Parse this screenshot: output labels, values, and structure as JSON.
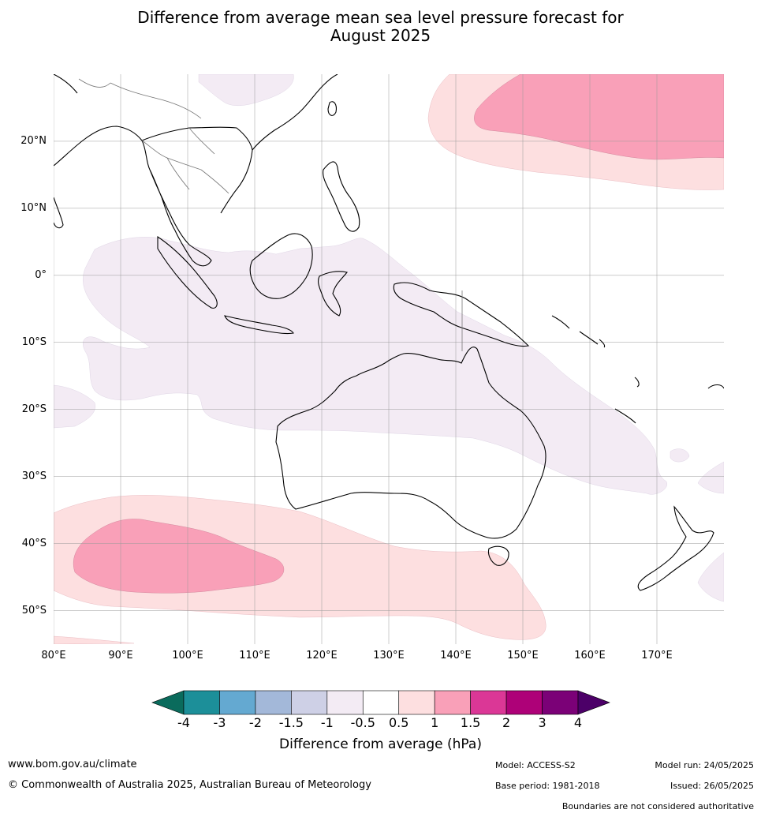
{
  "title": {
    "line1": "Difference from average mean sea level pressure forecast for",
    "line2": "August 2025"
  },
  "map": {
    "lat_labels": [
      "20°N",
      "10°N",
      "0°",
      "10°S",
      "20°S",
      "30°S",
      "40°S",
      "50°S"
    ],
    "lon_labels": [
      "80°E",
      "90°E",
      "100°E",
      "110°E",
      "120°E",
      "130°E",
      "140°E",
      "150°E",
      "160°E",
      "170°E"
    ],
    "lat_values": [
      20,
      10,
      0,
      -10,
      -20,
      -30,
      -40,
      -50
    ],
    "lon_values": [
      80,
      90,
      100,
      110,
      120,
      130,
      140,
      150,
      160,
      170
    ],
    "extent": {
      "lon_min": 80,
      "lon_max": 180,
      "lat_min": -55,
      "lat_max": 30
    },
    "anomaly_regions": [
      {
        "name": "north-pacific-high",
        "level": "1.5",
        "color": "#f9a0b8"
      },
      {
        "name": "north-pacific-high-outer",
        "level": "1",
        "color": "#fddfe0"
      },
      {
        "name": "southern-indian-high",
        "level": "1.5",
        "color": "#f9a0b8"
      },
      {
        "name": "southern-indian-high-outer",
        "level": "1",
        "color": "#fddfe0"
      },
      {
        "name": "maritime-continent-low",
        "level": "-0.5",
        "color": "#f3ebf4"
      }
    ]
  },
  "colorbar": {
    "colors": [
      "#0a6b5c",
      "#1c8f99",
      "#64a9d1",
      "#a3b8d9",
      "#ced0e6",
      "#f3ebf4",
      "#ffffff",
      "#fddfe0",
      "#f9a0b8",
      "#db3796",
      "#ae0178",
      "#7b0177",
      "#4c0068"
    ],
    "ticks": [
      "-4",
      "-3",
      "-2",
      "-1.5",
      "-1",
      "-0.5",
      "0.5",
      "1",
      "1.5",
      "2",
      "3",
      "4"
    ],
    "title": "Difference from average (hPa)"
  },
  "footer": {
    "website": "www.bom.gov.au/climate",
    "copyright": "© Commonwealth of Australia 2025, Australian Bureau of Meteorology",
    "model": "Model: ACCESS-S2",
    "base_period": "Base period: 1981-2018",
    "model_run": "Model run: 24/05/2025",
    "issued": "Issued: 26/05/2025",
    "boundaries_note": "Boundaries are not considered authoritative"
  }
}
